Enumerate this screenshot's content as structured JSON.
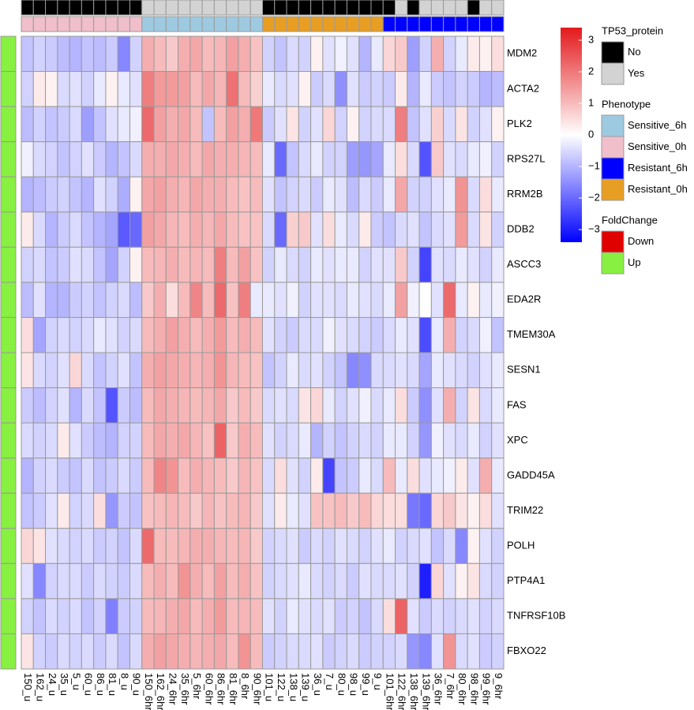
{
  "chart_data": {
    "type": "heatmap",
    "rows": [
      "MDM2",
      "ACTA2",
      "PLK2",
      "RPS27L",
      "RRM2B",
      "DDB2",
      "ASCC3",
      "EDA2R",
      "TMEM30A",
      "SESN1",
      "FAS",
      "XPC",
      "GADD45A",
      "TRIM22",
      "POLH",
      "PTP4A1",
      "TNFRSF10B",
      "FBXO22"
    ],
    "columns": [
      "150_u",
      "162_u",
      "24_u",
      "35_u",
      "5_u",
      "60_u",
      "86_u",
      "81_u",
      "8_u",
      "90_u",
      "150_6hr",
      "162_6hr",
      "24_6hr",
      "35_6hr",
      "5_6hr",
      "60_6hr",
      "86_6hr",
      "81_6hr",
      "8_6hr",
      "90_6hr",
      "101_u",
      "122_u",
      "138_u",
      "139_u",
      "36_u",
      "7_u",
      "80_u",
      "98_u",
      "99_u",
      "9_u",
      "101_6hr",
      "122_6hr",
      "138_6hr",
      "139_6hr",
      "36_6hr",
      "7_6hr",
      "80_6hr",
      "98_6hr",
      "99_6hr",
      "9_6hr"
    ],
    "values": [
      [
        -0.8,
        -0.6,
        -0.7,
        -0.9,
        -1,
        -0.8,
        -0.9,
        -0.7,
        -1.6,
        -0.6,
        1.2,
        1.0,
        0.8,
        1.2,
        1.3,
        1.0,
        1.1,
        1.4,
        1.2,
        0.9,
        -0.6,
        -0.8,
        -0.5,
        -0.6,
        0.2,
        -0.4,
        -0.2,
        -0.4,
        -1,
        -0.3,
        0.6,
        0.8,
        -1.3,
        -0.6,
        1.2,
        -0.6,
        -0.3,
        0.3,
        0.2,
        0.5
      ],
      [
        -0.6,
        0.3,
        0.2,
        -0.5,
        -0.4,
        -0.6,
        -0.3,
        0.2,
        -0.3,
        -0.4,
        1.9,
        1.5,
        1.5,
        1.4,
        1.0,
        1.3,
        1.1,
        2.1,
        1.0,
        0.7,
        -0.3,
        -0.5,
        -0.4,
        0.2,
        -0.7,
        -0.5,
        -1.5,
        -0.4,
        -0.7,
        -0.6,
        -0.7,
        0.3,
        -1.0,
        -0.3,
        -0.7,
        -0.8,
        -0.6,
        -0.7,
        -1.0,
        -0.9
      ],
      [
        -0.9,
        -0.6,
        -0.8,
        -0.7,
        -0.5,
        -1.3,
        -0.8,
        -0.4,
        -0.3,
        -0.2,
        2.2,
        1.4,
        1.2,
        1.3,
        1.0,
        -0.8,
        1.0,
        1.4,
        1.2,
        2.0,
        -0.7,
        -0.4,
        0.4,
        -0.6,
        -0.4,
        0.6,
        -0.6,
        0.2,
        -0.6,
        -0.5,
        -0.5,
        1.9,
        -0.8,
        -0.4,
        0.7,
        -0.5,
        0.4,
        -0.6,
        -0.4,
        0.2
      ],
      [
        -0.2,
        -0.5,
        -0.6,
        -0.8,
        -0.6,
        -0.4,
        -0.7,
        -1.0,
        -0.8,
        -0.5,
        1.2,
        1.2,
        1.3,
        1.2,
        1.0,
        1.3,
        1.2,
        1.2,
        1.1,
        1.0,
        -0.3,
        -2.0,
        -0.8,
        -0.5,
        -0.3,
        -0.6,
        -0.6,
        -1.3,
        -1.4,
        -1.2,
        -0.3,
        0.5,
        -0.5,
        -2.3,
        0.8,
        -0.4,
        -0.5,
        -0.3,
        -0.2,
        -0.6
      ],
      [
        -1.0,
        -0.9,
        -0.7,
        -0.6,
        -0.8,
        -1.0,
        -0.4,
        -0.6,
        -1.1,
        0.2,
        1.3,
        1.4,
        1.2,
        1.1,
        1.3,
        1.2,
        1.2,
        1.0,
        0.9,
        1.0,
        -0.4,
        -0.8,
        -0.6,
        -0.5,
        -0.7,
        -0.3,
        -0.4,
        -0.9,
        -0.5,
        -0.7,
        -0.3,
        1.3,
        -0.6,
        -0.6,
        -0.4,
        -0.3,
        1.6,
        -0.5,
        0.5,
        -0.3
      ],
      [
        0.3,
        -0.5,
        -1.0,
        -0.7,
        -0.5,
        -0.8,
        -1.0,
        -1.2,
        -2.2,
        -2.0,
        1.4,
        1.3,
        1.1,
        1.0,
        1.2,
        1.1,
        1.3,
        1.0,
        0.9,
        0.9,
        -0.5,
        -2.0,
        0.7,
        0.8,
        -0.4,
        0.5,
        -0.3,
        -0.5,
        0.3,
        -0.7,
        -0.8,
        -0.5,
        -0.4,
        -0.8,
        -0.5,
        -0.4,
        1.5,
        -0.5,
        0.4,
        -0.6
      ],
      [
        -0.6,
        -0.5,
        -0.8,
        -0.7,
        -0.4,
        -0.5,
        -0.8,
        -1.2,
        -0.6,
        0.2,
        1.0,
        1.1,
        1.2,
        1.0,
        1.1,
        1.0,
        1.9,
        1.0,
        1.4,
        0.9,
        -0.6,
        -0.3,
        -0.5,
        -0.6,
        -0.3,
        -0.4,
        -0.3,
        -0.3,
        -0.6,
        -0.4,
        -0.4,
        0.8,
        -0.6,
        -2.5,
        -0.4,
        -0.5,
        -0.3,
        -0.4,
        -0.6,
        -0.3
      ],
      [
        -0.9,
        -0.4,
        -1.0,
        -1.0,
        -0.7,
        -0.6,
        -0.8,
        -0.6,
        -0.5,
        -0.9,
        0.8,
        1.2,
        0.5,
        1.0,
        1.8,
        1.0,
        2.2,
        0.9,
        1.9,
        -0.3,
        -0.3,
        -0.4,
        -0.2,
        -0.6,
        -0.4,
        -0.4,
        -0.5,
        -0.3,
        -0.4,
        -0.5,
        -0.3,
        1.4,
        -0.2,
        0.0,
        -0.4,
        2.2,
        -0.3,
        0.2,
        -0.3,
        -0.2
      ],
      [
        0.5,
        -1.2,
        -0.6,
        -0.5,
        -0.6,
        -0.5,
        -0.3,
        -0.4,
        -0.6,
        -0.5,
        1.0,
        1.2,
        1.4,
        1.2,
        1.0,
        1.2,
        1.5,
        1.0,
        1.2,
        1.0,
        -0.4,
        -0.6,
        -0.7,
        -0.5,
        -0.5,
        -0.2,
        -0.4,
        -0.5,
        -0.6,
        -0.7,
        -0.5,
        -0.3,
        -0.4,
        -2.4,
        -0.3,
        1.2,
        -0.6,
        -0.5,
        -0.2,
        -0.8
      ],
      [
        0.4,
        -0.5,
        -0.6,
        -0.4,
        0.6,
        -0.5,
        -0.8,
        -0.6,
        -0.4,
        -0.8,
        1.2,
        1.4,
        1.3,
        1.2,
        1.1,
        1.2,
        1.6,
        1.1,
        1.0,
        0.9,
        -0.8,
        -0.6,
        -0.3,
        -0.5,
        -0.4,
        -0.6,
        -0.8,
        -1.6,
        -1.5,
        -0.5,
        -0.5,
        -0.4,
        -0.5,
        -1.2,
        -0.3,
        -0.4,
        -0.5,
        -0.6,
        -0.4,
        -0.3
      ],
      [
        -0.7,
        -0.9,
        -0.6,
        -0.4,
        -1.0,
        -0.5,
        -0.8,
        -2.3,
        -0.7,
        -0.9,
        1.0,
        1.3,
        1.2,
        1.1,
        1.0,
        1.1,
        1.3,
        0.8,
        1.0,
        0.8,
        -0.5,
        -0.4,
        -0.5,
        0.4,
        0.6,
        -0.3,
        -0.6,
        -0.4,
        -0.2,
        -0.5,
        -0.3,
        0.5,
        -0.7,
        -1.5,
        -0.4,
        1.2,
        -0.6,
        0.4,
        -0.5,
        -0.3
      ],
      [
        -0.5,
        -0.6,
        -0.5,
        0.3,
        -0.4,
        -0.7,
        -0.9,
        -1.0,
        -0.6,
        -0.6,
        1.0,
        1.3,
        1.2,
        1.3,
        1.1,
        0.9,
        2.3,
        0.8,
        1.2,
        1.0,
        -0.4,
        -0.6,
        -0.5,
        -0.3,
        -1.0,
        -0.6,
        -0.8,
        -0.6,
        -0.5,
        -0.6,
        -0.3,
        -0.3,
        -0.6,
        -1.4,
        -0.2,
        -0.4,
        -0.5,
        -0.3,
        -0.6,
        -0.4
      ],
      [
        -1.0,
        -0.6,
        -0.5,
        -0.7,
        -0.8,
        -0.5,
        -0.8,
        -0.7,
        -0.5,
        -0.7,
        1.0,
        1.8,
        1.6,
        1.0,
        1.2,
        1.1,
        1.0,
        0.8,
        1.1,
        0.9,
        -0.5,
        0.5,
        -0.4,
        -0.6,
        0.3,
        -2.5,
        -0.8,
        -0.7,
        -0.3,
        -0.5,
        1.0,
        -0.3,
        0.5,
        -0.4,
        -0.3,
        -0.2,
        0.3,
        -0.4,
        1.2,
        -0.3
      ],
      [
        -0.8,
        -0.7,
        -0.4,
        0.3,
        -0.6,
        -0.5,
        0.5,
        -1.4,
        -0.7,
        -0.8,
        0.9,
        1.0,
        1.1,
        1.0,
        0.8,
        1.1,
        0.9,
        1.0,
        1.1,
        0.8,
        -0.4,
        0.3,
        -0.3,
        -0.4,
        0.9,
        0.9,
        1.0,
        0.8,
        1.0,
        0.6,
        0.5,
        0.5,
        -1.8,
        -2.0,
        0.6,
        0.8,
        0.4,
        0.2,
        0.5,
        -0.4
      ],
      [
        0.6,
        0.4,
        -0.4,
        -0.5,
        -0.6,
        -0.5,
        -0.7,
        -0.6,
        -0.8,
        -0.5,
        2.2,
        1.0,
        1.0,
        1.1,
        1.2,
        1.2,
        1.1,
        1.0,
        1.1,
        0.8,
        -0.6,
        -0.5,
        -0.4,
        -0.7,
        -0.5,
        -0.6,
        -0.4,
        -0.5,
        -0.6,
        -0.4,
        -0.3,
        -0.6,
        -0.5,
        -0.4,
        -0.8,
        -0.5,
        -1.6,
        0.2,
        -0.4,
        -0.6
      ],
      [
        -0.4,
        -1.6,
        -0.6,
        -0.5,
        -0.5,
        -0.7,
        -0.5,
        -0.6,
        -0.7,
        -0.5,
        1.0,
        1.2,
        1.0,
        1.6,
        1.2,
        1.0,
        1.4,
        1.0,
        1.2,
        0.9,
        -0.6,
        -0.5,
        -0.4,
        -0.3,
        -0.5,
        -0.6,
        -0.5,
        -0.7,
        -0.4,
        -0.5,
        -0.5,
        -0.4,
        -0.6,
        -3.0,
        0.6,
        -0.4,
        0.2,
        0.4,
        -0.5,
        -0.6
      ],
      [
        -0.6,
        -0.8,
        -0.5,
        -0.6,
        -0.5,
        -0.8,
        -0.6,
        -1.7,
        -0.7,
        -0.6,
        1.0,
        1.1,
        1.2,
        1.3,
        1.0,
        1.2,
        1.5,
        1.0,
        1.1,
        1.0,
        -0.4,
        -0.6,
        -0.3,
        -0.4,
        -0.5,
        -0.4,
        -0.7,
        -0.6,
        -0.8,
        -0.5,
        0.5,
        2.3,
        -0.4,
        -0.7,
        -0.5,
        -0.6,
        -0.5,
        -0.4,
        -0.6,
        -0.5
      ],
      [
        0.4,
        -0.6,
        -0.7,
        -0.5,
        -0.6,
        -0.5,
        -0.7,
        -0.5,
        -0.8,
        -0.5,
        1.2,
        1.4,
        1.3,
        1.2,
        1.1,
        1.2,
        1.3,
        1.0,
        1.6,
        1.0,
        -0.7,
        -0.6,
        -0.5,
        -0.5,
        -0.4,
        -0.7,
        -0.6,
        -0.5,
        -0.7,
        -0.6,
        -0.6,
        -0.5,
        -1.4,
        -1.6,
        -0.4,
        1.6,
        -0.5,
        -0.4,
        -0.7,
        -0.6
      ]
    ],
    "colors": {
      "low": "#0000ff",
      "mid": "#ffffff",
      "high": "#e3191c"
    },
    "colorbar_lim": [
      -3.4,
      3.4
    ],
    "colorbar_ticks": [
      {
        "value": -3,
        "label": "−3"
      },
      {
        "value": -2,
        "label": "−2"
      },
      {
        "value": -1,
        "label": "−1"
      },
      0,
      1,
      2,
      3
    ],
    "column_annotations": [
      {
        "name": "TP53_protein",
        "levels": [
          {
            "label": "No",
            "color": "#000000"
          },
          {
            "label": "Yes",
            "color": "#d3d3d3"
          }
        ],
        "values": [
          "No",
          "No",
          "No",
          "No",
          "No",
          "No",
          "No",
          "No",
          "No",
          "No",
          "Yes",
          "Yes",
          "Yes",
          "Yes",
          "Yes",
          "Yes",
          "Yes",
          "Yes",
          "Yes",
          "Yes",
          "No",
          "No",
          "No",
          "No",
          "No",
          "No",
          "No",
          "No",
          "No",
          "No",
          "No",
          "Yes",
          "No",
          "Yes",
          "Yes",
          "Yes",
          "Yes",
          "No",
          "Yes",
          "Yes"
        ]
      },
      {
        "name": "Phenotype",
        "levels": [
          {
            "label": "Sensitive_6h",
            "color": "#9ecae1"
          },
          {
            "label": "Sensitive_0h",
            "color": "#f0bfcb"
          },
          {
            "label": "Resistant_6h",
            "color": "#0000ff"
          },
          {
            "label": "Resistant_0h",
            "color": "#e89e22"
          }
        ],
        "values": [
          "Sensitive_0h",
          "Sensitive_0h",
          "Sensitive_0h",
          "Sensitive_0h",
          "Sensitive_0h",
          "Sensitive_0h",
          "Sensitive_0h",
          "Sensitive_0h",
          "Sensitive_0h",
          "Sensitive_0h",
          "Sensitive_6h",
          "Sensitive_6h",
          "Sensitive_6h",
          "Sensitive_6h",
          "Sensitive_6h",
          "Sensitive_6h",
          "Sensitive_6h",
          "Sensitive_6h",
          "Sensitive_6h",
          "Sensitive_6h",
          "Resistant_0h",
          "Resistant_0h",
          "Resistant_0h",
          "Resistant_0h",
          "Resistant_0h",
          "Resistant_0h",
          "Resistant_0h",
          "Resistant_0h",
          "Resistant_0h",
          "Resistant_0h",
          "Resistant_6h",
          "Resistant_6h",
          "Resistant_6h",
          "Resistant_6h",
          "Resistant_6h",
          "Resistant_6h",
          "Resistant_6h",
          "Resistant_6h",
          "Resistant_6h",
          "Resistant_6h"
        ]
      }
    ],
    "row_annotations": [
      {
        "name": "FoldChange",
        "levels": [
          {
            "label": "Down",
            "color": "#e00000"
          },
          {
            "label": "Up",
            "color": "#88f040"
          }
        ],
        "values": [
          "Up",
          "Up",
          "Up",
          "Up",
          "Up",
          "Up",
          "Up",
          "Up",
          "Up",
          "Up",
          "Up",
          "Up",
          "Up",
          "Up",
          "Up",
          "Up",
          "Up",
          "Up"
        ]
      }
    ]
  }
}
